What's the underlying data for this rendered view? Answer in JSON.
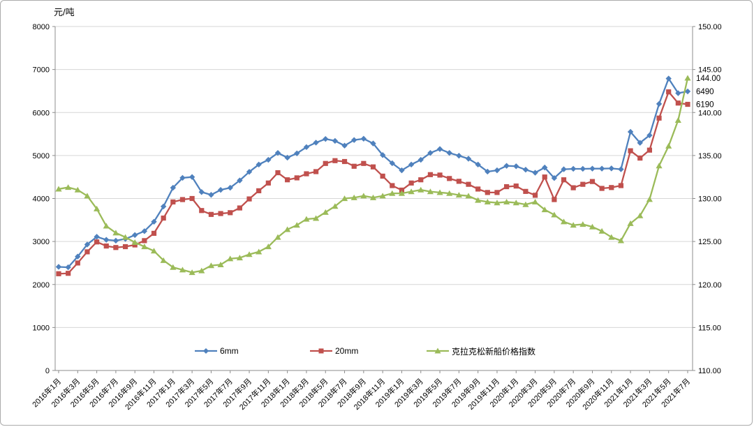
{
  "chart_data": {
    "type": "line",
    "title": "",
    "axis_unit_label": "元/吨",
    "y_left": {
      "min": 0,
      "max": 8000,
      "step": 1000,
      "tick_labels": [
        "0",
        "1000",
        "2000",
        "3000",
        "4000",
        "5000",
        "6000",
        "7000",
        "8000"
      ]
    },
    "y_right": {
      "min": 110,
      "max": 150,
      "step": 5,
      "tick_labels": [
        "110.00",
        "115.00",
        "120.00",
        "125.00",
        "130.00",
        "135.00",
        "140.00",
        "145.00",
        "150.00"
      ]
    },
    "x_tick_labels": [
      "2016年1月",
      "2016年3月",
      "2016年5月",
      "2016年7月",
      "2016年9月",
      "2016年11月",
      "2017年1月",
      "2017年3月",
      "2017年5月",
      "2017年7月",
      "2017年9月",
      "2017年11月",
      "2018年1月",
      "2018年3月",
      "2018年5月",
      "2018年7月",
      "2018年9月",
      "2018年11月",
      "2019年1月",
      "2019年3月",
      "2019年5月",
      "2019年7月",
      "2019年9月",
      "2019年11月",
      "2020年1月",
      "2020年3月",
      "2020年5月",
      "2020年7月",
      "2020年9月",
      "2020年11月",
      "2021年1月",
      "2021年3月",
      "2021年5月",
      "2021年7月"
    ],
    "x_points_per_label": 2,
    "grid": true,
    "legend_position": "bottom-inside",
    "series": [
      {
        "name": "6mm",
        "color": "#4F81BD",
        "marker": "diamond",
        "axis": "left",
        "values": [
          2410,
          2400,
          2650,
          2930,
          3110,
          3040,
          3020,
          3060,
          3150,
          3240,
          3460,
          3815,
          4250,
          4480,
          4500,
          4150,
          4085,
          4200,
          4250,
          4420,
          4620,
          4790,
          4900,
          5060,
          4950,
          5050,
          5195,
          5300,
          5385,
          5340,
          5230,
          5360,
          5390,
          5280,
          5010,
          4820,
          4655,
          4790,
          4900,
          5060,
          5150,
          5060,
          4995,
          4925,
          4790,
          4625,
          4655,
          4760,
          4750,
          4670,
          4600,
          4720,
          4475,
          4680,
          4690,
          4690,
          4695,
          4695,
          4700,
          4680,
          5550,
          5295,
          5470,
          6200,
          6790,
          6450,
          6490
        ]
      },
      {
        "name": "20mm",
        "color": "#C0504D",
        "marker": "square",
        "axis": "left",
        "values": [
          2250,
          2260,
          2500,
          2760,
          2990,
          2895,
          2860,
          2880,
          2920,
          3020,
          3190,
          3545,
          3920,
          3975,
          4000,
          3720,
          3630,
          3650,
          3670,
          3780,
          3990,
          4180,
          4360,
          4600,
          4435,
          4480,
          4575,
          4625,
          4815,
          4880,
          4860,
          4750,
          4815,
          4735,
          4520,
          4300,
          4195,
          4360,
          4435,
          4555,
          4545,
          4465,
          4400,
          4330,
          4220,
          4140,
          4140,
          4275,
          4290,
          4165,
          4075,
          4500,
          3975,
          4435,
          4250,
          4330,
          4395,
          4235,
          4255,
          4300,
          5110,
          4940,
          5125,
          5870,
          6480,
          6220,
          6190
        ]
      },
      {
        "name": "克拉克松新船价格指数",
        "color": "#9BBB59",
        "marker": "triangle",
        "axis": "right",
        "values": [
          131.1,
          131.3,
          131.0,
          130.3,
          128.8,
          126.8,
          126.0,
          125.5,
          124.9,
          124.4,
          123.9,
          122.8,
          122.0,
          121.7,
          121.4,
          121.6,
          122.2,
          122.3,
          123.0,
          123.1,
          123.5,
          123.8,
          124.4,
          125.5,
          126.4,
          126.9,
          127.6,
          127.7,
          128.4,
          129.1,
          130.0,
          130.1,
          130.3,
          130.1,
          130.3,
          130.6,
          130.6,
          130.8,
          131.0,
          130.8,
          130.7,
          130.6,
          130.4,
          130.3,
          129.8,
          129.6,
          129.5,
          129.6,
          129.5,
          129.3,
          129.6,
          128.7,
          128.1,
          127.3,
          126.9,
          127.0,
          126.7,
          126.2,
          125.5,
          125.1,
          127.1,
          128.0,
          129.9,
          133.8,
          136.1,
          139.1,
          144.0
        ]
      }
    ],
    "end_labels": [
      {
        "text": "144.00",
        "series": 2
      },
      {
        "text": "6490",
        "series": 0
      },
      {
        "text": "6190",
        "series": 1
      }
    ],
    "colors": {
      "gridline": "#d6d6d6",
      "axis": "#8c8c8c",
      "text": "#000000"
    }
  }
}
